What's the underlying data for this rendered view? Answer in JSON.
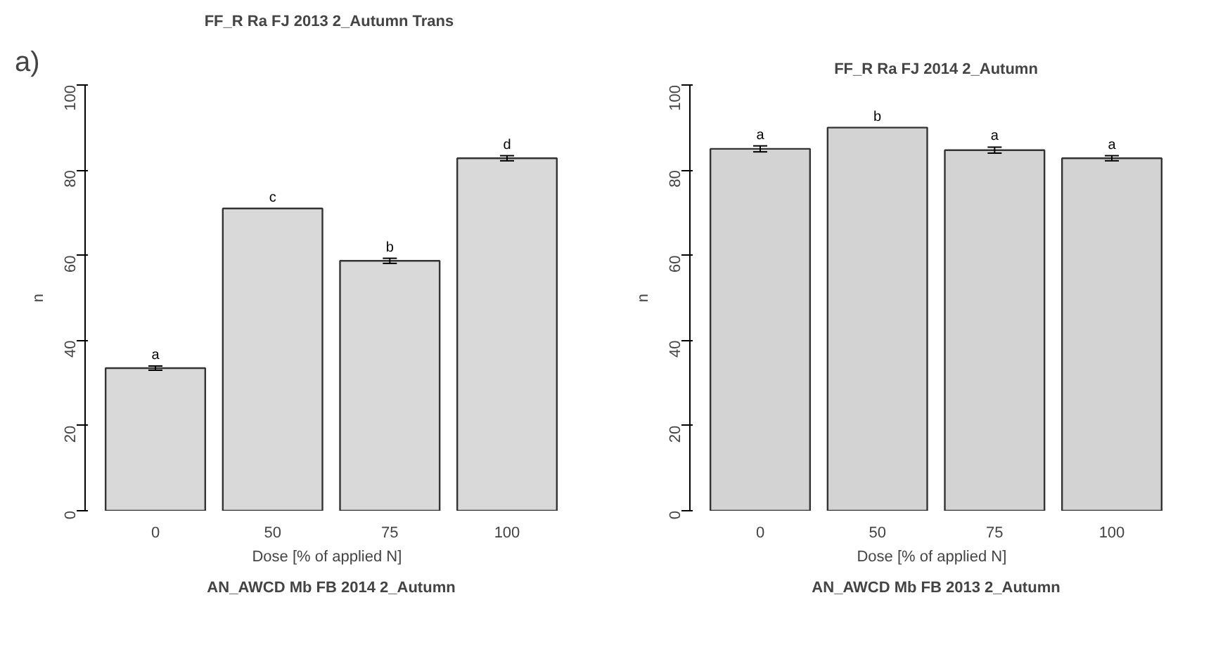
{
  "chart_data": [
    {
      "type": "bar",
      "title": "FF_R Ra FJ 2013 2_Autumn  Trans",
      "xlabel": "Dose   [% of applied N]",
      "ylabel": "n",
      "annotations": [
        "a)"
      ],
      "categories": [
        "0",
        "50",
        "75",
        "100"
      ],
      "values": [
        33.5,
        71,
        58.7,
        82.8
      ],
      "errors": [
        0.5,
        null,
        0.6,
        0.6
      ],
      "value_labels": [
        "a",
        "c",
        "b",
        "d"
      ],
      "color": "#d9d9d9",
      "ylim": [
        0,
        100
      ],
      "yticks": [
        0,
        20,
        40,
        60,
        80,
        100
      ],
      "grid": false
    },
    {
      "type": "bar",
      "title": "FF_R Ra FJ 2014 2_Autumn",
      "xlabel": "Dose   [% of applied N]",
      "ylabel": "n",
      "categories": [
        "0",
        "50",
        "75",
        "100"
      ],
      "values": [
        85,
        90,
        84.7,
        82.8
      ],
      "errors": [
        0.7,
        null,
        0.7,
        0.6
      ],
      "value_labels": [
        "a",
        "b",
        "a",
        "a"
      ],
      "color": "#d3d3d3",
      "ylim": [
        0,
        100
      ],
      "yticks": [
        0,
        20,
        40,
        60,
        80,
        100
      ],
      "grid": false
    },
    {
      "type": "other",
      "title": "AN_AWCD Mb FB 2014 2_Autumn"
    },
    {
      "type": "other",
      "title": "AN_AWCD Mb FB 2013 2_Autumn"
    }
  ]
}
